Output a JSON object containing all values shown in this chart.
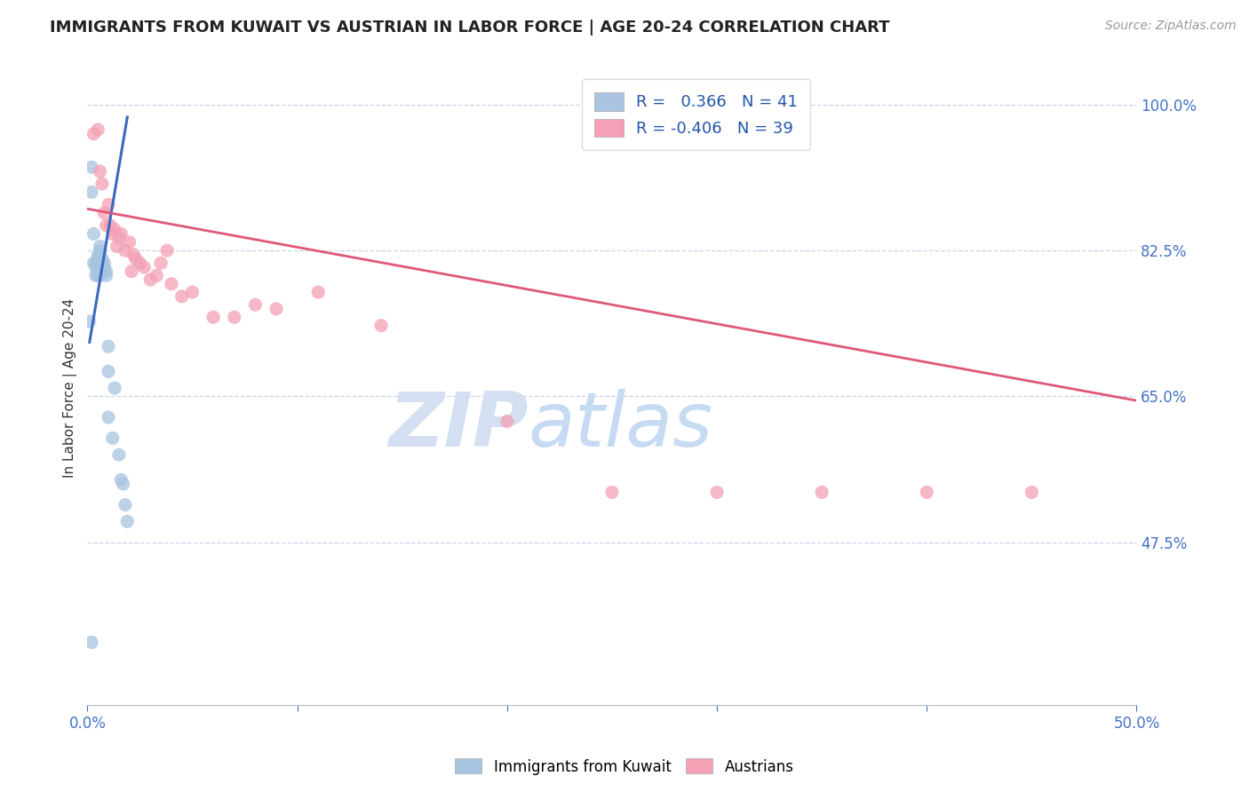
{
  "title": "IMMIGRANTS FROM KUWAIT VS AUSTRIAN IN LABOR FORCE | AGE 20-24 CORRELATION CHART",
  "source": "Source: ZipAtlas.com",
  "ylabel": "In Labor Force | Age 20-24",
  "xlim": [
    0.0,
    0.5
  ],
  "ylim": [
    0.28,
    1.04
  ],
  "xtick_positions": [
    0.0,
    0.1,
    0.2,
    0.3,
    0.4,
    0.5
  ],
  "ytick_vals_right": [
    1.0,
    0.825,
    0.65,
    0.475
  ],
  "ytick_labels_right": [
    "100.0%",
    "82.5%",
    "65.0%",
    "47.5%"
  ],
  "blue_color": "#a8c4e0",
  "pink_color": "#f4a0b5",
  "blue_line_color": "#3a6abf",
  "pink_line_color": "#e05878",
  "blue_scatter_x": [
    0.001,
    0.002,
    0.002,
    0.003,
    0.003,
    0.004,
    0.004,
    0.004,
    0.005,
    0.005,
    0.005,
    0.005,
    0.005,
    0.005,
    0.006,
    0.006,
    0.006,
    0.006,
    0.006,
    0.006,
    0.006,
    0.006,
    0.007,
    0.007,
    0.007,
    0.007,
    0.008,
    0.008,
    0.009,
    0.009,
    0.01,
    0.01,
    0.01,
    0.012,
    0.013,
    0.015,
    0.016,
    0.017,
    0.018,
    0.019,
    0.002
  ],
  "blue_scatter_y": [
    0.74,
    0.925,
    0.895,
    0.81,
    0.845,
    0.795,
    0.805,
    0.81,
    0.795,
    0.8,
    0.805,
    0.81,
    0.815,
    0.82,
    0.795,
    0.8,
    0.805,
    0.81,
    0.815,
    0.82,
    0.825,
    0.83,
    0.8,
    0.805,
    0.81,
    0.815,
    0.805,
    0.81,
    0.795,
    0.8,
    0.625,
    0.68,
    0.71,
    0.6,
    0.66,
    0.58,
    0.55,
    0.545,
    0.52,
    0.5,
    0.355
  ],
  "pink_scatter_x": [
    0.003,
    0.005,
    0.006,
    0.007,
    0.008,
    0.009,
    0.01,
    0.011,
    0.012,
    0.013,
    0.014,
    0.015,
    0.016,
    0.018,
    0.02,
    0.021,
    0.022,
    0.023,
    0.025,
    0.027,
    0.03,
    0.033,
    0.035,
    0.038,
    0.04,
    0.045,
    0.05,
    0.06,
    0.07,
    0.08,
    0.09,
    0.11,
    0.14,
    0.2,
    0.25,
    0.3,
    0.35,
    0.4,
    0.45
  ],
  "pink_scatter_y": [
    0.965,
    0.97,
    0.92,
    0.905,
    0.87,
    0.855,
    0.88,
    0.855,
    0.845,
    0.85,
    0.83,
    0.84,
    0.845,
    0.825,
    0.835,
    0.8,
    0.82,
    0.815,
    0.81,
    0.805,
    0.79,
    0.795,
    0.81,
    0.825,
    0.785,
    0.77,
    0.775,
    0.745,
    0.745,
    0.76,
    0.755,
    0.775,
    0.735,
    0.62,
    0.535,
    0.535,
    0.535,
    0.535,
    0.535
  ],
  "blue_line_x": [
    0.001,
    0.019
  ],
  "blue_line_y": [
    0.715,
    0.985
  ],
  "pink_line_x": [
    0.0,
    0.5
  ],
  "pink_line_y": [
    0.875,
    0.645
  ],
  "background_color": "#ffffff",
  "grid_color": "#c8d4e8",
  "title_color": "#222222",
  "axis_label_color": "#333333",
  "tick_color": "#4472c4",
  "source_color": "#999999",
  "watermark_zip": "ZIP",
  "watermark_atlas": "atlas",
  "watermark_color_zip": "#d0ddf0",
  "watermark_color_atlas": "#c0d8f0"
}
